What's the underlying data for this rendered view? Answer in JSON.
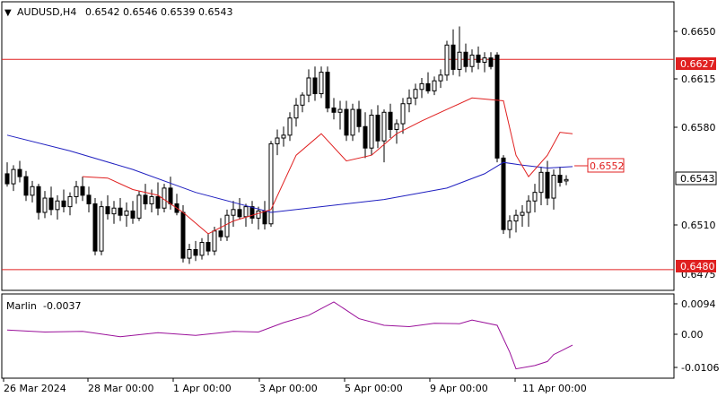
{
  "header": {
    "symbol": "AUDUSD,H4",
    "open": "0.6542",
    "high": "0.6546",
    "low": "0.6539",
    "close": "0.6543"
  },
  "indicator": {
    "name": "Marlin",
    "value": "-0.0037",
    "ticks": [
      "0.0094",
      "0.00",
      "-0.0106"
    ]
  },
  "price_axis": {
    "ticks": [
      "0.6650",
      "0.6615",
      "0.6580",
      "0.6510",
      "0.6475"
    ],
    "current_label": "0.6543",
    "upper_level_label": "0.6627",
    "lower_level_label": "0.6480",
    "ma_label": "0.6552"
  },
  "time_axis": {
    "labels": [
      "26 Mar 2024",
      "28 Mar 00:00",
      "1 Apr 00:00",
      "3 Apr 00:00",
      "5 Apr 00:00",
      "9 Apr 00:00",
      "11 Apr 00:00"
    ]
  },
  "colors": {
    "bull": "#ffffff",
    "bear": "#000000",
    "level": "#e02020",
    "ma_blue": "#2020c0",
    "ma_red": "#e02020",
    "osc": "#9a109a"
  },
  "chart_data": {
    "type": "candlestick",
    "levels": [
      0.6627,
      0.648
    ],
    "ylim": [
      0.6468,
      0.6666
    ],
    "osc_ylim": [
      -0.0125,
      0.0105
    ],
    "candles": [
      [
        0.6547,
        0.6555,
        0.6538,
        0.654
      ],
      [
        0.654,
        0.6553,
        0.6535,
        0.655
      ],
      [
        0.655,
        0.6556,
        0.6541,
        0.6545
      ],
      [
        0.6545,
        0.6549,
        0.6528,
        0.6532
      ],
      [
        0.6532,
        0.6542,
        0.6527,
        0.6538
      ],
      [
        0.6538,
        0.654,
        0.6515,
        0.652
      ],
      [
        0.652,
        0.6535,
        0.6516,
        0.653
      ],
      [
        0.653,
        0.6538,
        0.6518,
        0.6522
      ],
      [
        0.6522,
        0.6532,
        0.6515,
        0.6528
      ],
      [
        0.6528,
        0.6536,
        0.652,
        0.6524
      ],
      [
        0.6524,
        0.6534,
        0.6518,
        0.6531
      ],
      [
        0.6531,
        0.6542,
        0.6526,
        0.6538
      ],
      [
        0.6538,
        0.6545,
        0.6528,
        0.6532
      ],
      [
        0.6532,
        0.6538,
        0.652,
        0.6526
      ],
      [
        0.6526,
        0.653,
        0.649,
        0.6493
      ],
      [
        0.6493,
        0.6528,
        0.649,
        0.6524
      ],
      [
        0.6524,
        0.6532,
        0.6515,
        0.6519
      ],
      [
        0.6519,
        0.6528,
        0.6512,
        0.6523
      ],
      [
        0.6523,
        0.653,
        0.6514,
        0.6518
      ],
      [
        0.6518,
        0.6527,
        0.651,
        0.6521
      ],
      [
        0.6521,
        0.6528,
        0.6512,
        0.6516
      ],
      [
        0.6516,
        0.6535,
        0.6514,
        0.6532
      ],
      [
        0.6532,
        0.654,
        0.6522,
        0.6526
      ],
      [
        0.6526,
        0.6536,
        0.652,
        0.6531
      ],
      [
        0.6531,
        0.6541,
        0.6518,
        0.6523
      ],
      [
        0.6523,
        0.654,
        0.652,
        0.6537
      ],
      [
        0.6537,
        0.6545,
        0.6522,
        0.6526
      ],
      [
        0.6526,
        0.6533,
        0.6518,
        0.652
      ],
      [
        0.652,
        0.6525,
        0.6485,
        0.6488
      ],
      [
        0.6488,
        0.6498,
        0.6484,
        0.6494
      ],
      [
        0.6494,
        0.65,
        0.6486,
        0.649
      ],
      [
        0.649,
        0.6502,
        0.6487,
        0.6499
      ],
      [
        0.6499,
        0.6505,
        0.649,
        0.6493
      ],
      [
        0.6493,
        0.651,
        0.649,
        0.6507
      ],
      [
        0.6507,
        0.6516,
        0.65,
        0.6503
      ],
      [
        0.6503,
        0.6522,
        0.65,
        0.6518
      ],
      [
        0.6518,
        0.6528,
        0.651,
        0.6522
      ],
      [
        0.6522,
        0.653,
        0.6515,
        0.6517
      ],
      [
        0.6517,
        0.6526,
        0.651,
        0.6524
      ],
      [
        0.6524,
        0.6528,
        0.6512,
        0.6516
      ],
      [
        0.6516,
        0.6524,
        0.6508,
        0.6521
      ],
      [
        0.6521,
        0.6528,
        0.6508,
        0.6512
      ],
      [
        0.6512,
        0.657,
        0.651,
        0.6568
      ],
      [
        0.6568,
        0.6578,
        0.656,
        0.6572
      ],
      [
        0.6572,
        0.658,
        0.6566,
        0.6574
      ],
      [
        0.6574,
        0.659,
        0.657,
        0.6586
      ],
      [
        0.6586,
        0.66,
        0.658,
        0.6595
      ],
      [
        0.6595,
        0.6604,
        0.659,
        0.6602
      ],
      [
        0.6602,
        0.662,
        0.6597,
        0.6614
      ],
      [
        0.6614,
        0.6622,
        0.6598,
        0.6603
      ],
      [
        0.6603,
        0.6622,
        0.66,
        0.6618
      ],
      [
        0.6618,
        0.6622,
        0.659,
        0.6593
      ],
      [
        0.6593,
        0.66,
        0.6585,
        0.659
      ],
      [
        0.659,
        0.6598,
        0.6578,
        0.6592
      ],
      [
        0.6592,
        0.6598,
        0.657,
        0.6574
      ],
      [
        0.6574,
        0.6596,
        0.657,
        0.6592
      ],
      [
        0.6592,
        0.6598,
        0.6576,
        0.658
      ],
      [
        0.658,
        0.659,
        0.6558,
        0.6565
      ],
      [
        0.6565,
        0.6592,
        0.656,
        0.6588
      ],
      [
        0.6588,
        0.6595,
        0.6565,
        0.657
      ],
      [
        0.657,
        0.6592,
        0.6555,
        0.659
      ],
      [
        0.659,
        0.6596,
        0.6572,
        0.6578
      ],
      [
        0.6578,
        0.6585,
        0.6568,
        0.6582
      ],
      [
        0.6582,
        0.66,
        0.6575,
        0.6596
      ],
      [
        0.6596,
        0.6606,
        0.659,
        0.66
      ],
      [
        0.66,
        0.661,
        0.6595,
        0.6606
      ],
      [
        0.6606,
        0.6614,
        0.66,
        0.661
      ],
      [
        0.661,
        0.6618,
        0.6603,
        0.6605
      ],
      [
        0.6605,
        0.6615,
        0.6602,
        0.6612
      ],
      [
        0.6612,
        0.662,
        0.6607,
        0.6616
      ],
      [
        0.6616,
        0.664,
        0.6612,
        0.6637
      ],
      [
        0.6637,
        0.6648,
        0.6616,
        0.662
      ],
      [
        0.662,
        0.665,
        0.6615,
        0.6632
      ],
      [
        0.6632,
        0.6638,
        0.6618,
        0.6622
      ],
      [
        0.6622,
        0.6634,
        0.6618,
        0.663
      ],
      [
        0.663,
        0.6636,
        0.662,
        0.6625
      ],
      [
        0.6625,
        0.6632,
        0.6618,
        0.6628
      ],
      [
        0.6628,
        0.6632,
        0.662,
        0.6622
      ],
      [
        0.663,
        0.6632,
        0.6555,
        0.6558
      ],
      [
        0.6558,
        0.656,
        0.6505,
        0.6508
      ],
      [
        0.6508,
        0.6518,
        0.6502,
        0.6514
      ],
      [
        0.6514,
        0.6522,
        0.6506,
        0.6518
      ],
      [
        0.6518,
        0.6525,
        0.651,
        0.652
      ],
      [
        0.652,
        0.6532,
        0.651,
        0.6528
      ],
      [
        0.6528,
        0.654,
        0.652,
        0.6534
      ],
      [
        0.6534,
        0.6552,
        0.6525,
        0.6548
      ],
      [
        0.6548,
        0.6556,
        0.6525,
        0.653
      ],
      [
        0.653,
        0.655,
        0.6522,
        0.6546
      ],
      [
        0.6546,
        0.6552,
        0.6538,
        0.6541
      ],
      [
        0.6542,
        0.6546,
        0.6539,
        0.6543
      ]
    ],
    "ma_blue": [
      [
        0,
        0.6574
      ],
      [
        10,
        0.6563
      ],
      [
        20,
        0.655
      ],
      [
        30,
        0.6534
      ],
      [
        36,
        0.6527
      ],
      [
        42,
        0.652
      ],
      [
        50,
        0.6524
      ],
      [
        60,
        0.6529
      ],
      [
        70,
        0.6537
      ],
      [
        76,
        0.6547
      ],
      [
        79,
        0.6555
      ],
      [
        82,
        0.6553
      ],
      [
        86,
        0.6551
      ],
      [
        90,
        0.6552
      ]
    ],
    "ma_red": [
      [
        12,
        0.6545
      ],
      [
        16,
        0.6544
      ],
      [
        20,
        0.6536
      ],
      [
        24,
        0.6532
      ],
      [
        28,
        0.652
      ],
      [
        32,
        0.6505
      ],
      [
        36,
        0.6514
      ],
      [
        42,
        0.6522
      ],
      [
        46,
        0.656
      ],
      [
        50,
        0.6575
      ],
      [
        54,
        0.6556
      ],
      [
        58,
        0.656
      ],
      [
        62,
        0.6575
      ],
      [
        66,
        0.6584
      ],
      [
        70,
        0.6592
      ],
      [
        74,
        0.66
      ],
      [
        79,
        0.6598
      ],
      [
        81,
        0.656
      ],
      [
        83,
        0.6545
      ],
      [
        86,
        0.656
      ],
      [
        88,
        0.6576
      ],
      [
        90,
        0.6575
      ]
    ],
    "marlin": [
      [
        0,
        0.0008
      ],
      [
        6,
        0.0002
      ],
      [
        12,
        0.0004
      ],
      [
        18,
        -0.0012
      ],
      [
        24,
        0.0
      ],
      [
        30,
        -0.0008
      ],
      [
        36,
        0.0004
      ],
      [
        40,
        0.0002
      ],
      [
        44,
        0.003
      ],
      [
        48,
        0.0052
      ],
      [
        52,
        0.0092
      ],
      [
        56,
        0.0042
      ],
      [
        60,
        0.0022
      ],
      [
        64,
        0.0018
      ],
      [
        68,
        0.0028
      ],
      [
        72,
        0.0027
      ],
      [
        74,
        0.0038
      ],
      [
        78,
        0.0022
      ],
      [
        80,
        -0.0058
      ],
      [
        81,
        -0.0108
      ],
      [
        84,
        -0.0098
      ],
      [
        86,
        -0.0086
      ],
      [
        87,
        -0.0065
      ],
      [
        88,
        -0.0056
      ],
      [
        90,
        -0.0037
      ]
    ]
  }
}
